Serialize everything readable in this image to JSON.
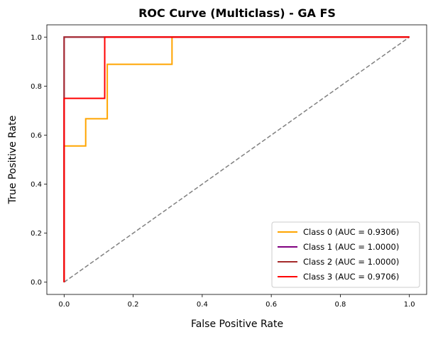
{
  "chart_data": {
    "type": "line",
    "title": "ROC Curve (Multiclass) - GA FS",
    "xlabel": "False Positive Rate",
    "ylabel": "True Positive Rate",
    "xlim": [
      -0.05,
      1.05
    ],
    "ylim": [
      -0.05,
      1.05
    ],
    "x_ticks": [
      "0.0",
      "0.2",
      "0.4",
      "0.6",
      "0.8",
      "1.0"
    ],
    "y_ticks": [
      "0.0",
      "0.2",
      "0.4",
      "0.6",
      "0.8",
      "1.0"
    ],
    "grid": false,
    "legend_position": "bottom-right",
    "diagonal": {
      "x": [
        0,
        1
      ],
      "y": [
        0,
        1
      ],
      "color": "#808080",
      "style": "dashed"
    },
    "series": [
      {
        "name": "Class 0 (AUC = 0.9306)",
        "color": "#FFA500",
        "x": [
          0,
          0,
          0.0625,
          0.0625,
          0.125,
          0.125,
          0.3125,
          0.3125,
          1.0
        ],
        "y": [
          0,
          0.5556,
          0.5556,
          0.6667,
          0.6667,
          0.8889,
          0.8889,
          1.0,
          1.0
        ]
      },
      {
        "name": "Class 1 (AUC = 1.0000)",
        "color": "#800080",
        "x": [
          0,
          0,
          1.0
        ],
        "y": [
          0,
          1.0,
          1.0
        ]
      },
      {
        "name": "Class 2 (AUC = 1.0000)",
        "color": "#A52A2A",
        "x": [
          0,
          0,
          1.0
        ],
        "y": [
          0,
          1.0,
          1.0
        ]
      },
      {
        "name": "Class 3 (AUC = 0.9706)",
        "color": "#FF0000",
        "x": [
          0,
          0,
          0.1176,
          0.1176,
          1.0
        ],
        "y": [
          0,
          0.75,
          0.75,
          1.0,
          1.0
        ]
      }
    ]
  }
}
